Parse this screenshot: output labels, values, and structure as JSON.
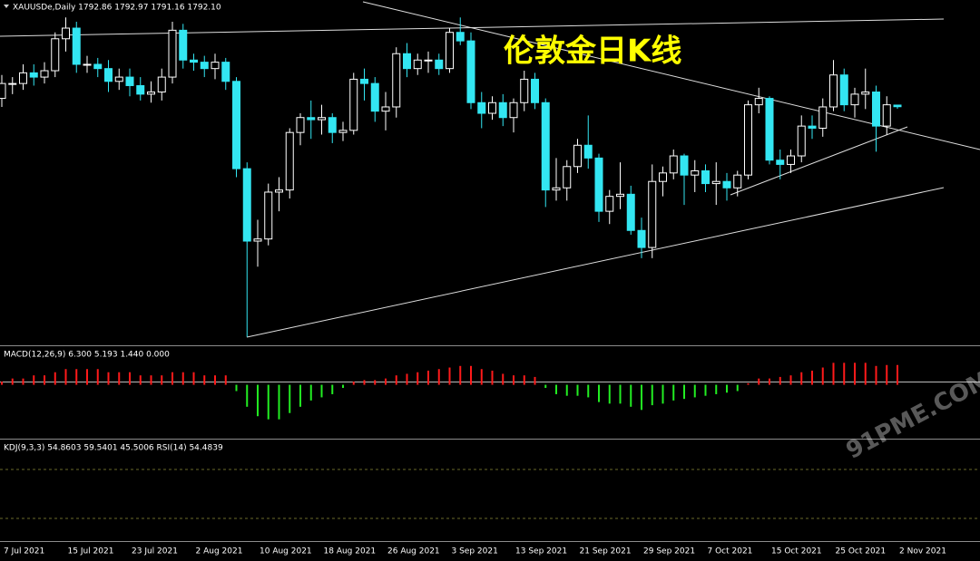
{
  "chart_data": {
    "type": "candlestick",
    "title": "伦敦金日K线",
    "header": "XAUUSDe,Daily 1792.86 1792.97 1791.16 1792.10",
    "watermark": "91PME.COM",
    "x": [
      "7 Jul 2021",
      "8 Jul 2021",
      "9 Jul 2021",
      "12 Jul 2021",
      "13 Jul 2021",
      "14 Jul 2021",
      "15 Jul 2021",
      "16 Jul 2021",
      "19 Jul 2021",
      "20 Jul 2021",
      "21 Jul 2021",
      "22 Jul 2021",
      "23 Jul 2021",
      "26 Jul 2021",
      "27 Jul 2021",
      "28 Jul 2021",
      "29 Jul 2021",
      "30 Jul 2021",
      "2 Aug 2021",
      "3 Aug 2021",
      "4 Aug 2021",
      "5 Aug 2021",
      "6 Aug 2021",
      "9 Aug 2021",
      "10 Aug 2021",
      "11 Aug 2021",
      "12 Aug 2021",
      "13 Aug 2021",
      "16 Aug 2021",
      "17 Aug 2021",
      "18 Aug 2021",
      "19 Aug 2021",
      "20 Aug 2021",
      "23 Aug 2021",
      "24 Aug 2021",
      "25 Aug 2021",
      "26 Aug 2021",
      "27 Aug 2021",
      "30 Aug 2021",
      "31 Aug 2021",
      "1 Sep 2021",
      "2 Sep 2021",
      "3 Sep 2021",
      "6 Sep 2021",
      "7 Sep 2021",
      "8 Sep 2021",
      "9 Sep 2021",
      "10 Sep 2021",
      "13 Sep 2021",
      "14 Sep 2021",
      "15 Sep 2021",
      "16 Sep 2021",
      "17 Sep 2021",
      "20 Sep 2021",
      "21 Sep 2021",
      "22 Sep 2021",
      "23 Sep 2021",
      "24 Sep 2021",
      "27 Sep 2021",
      "28 Sep 2021",
      "29 Sep 2021",
      "30 Sep 2021",
      "1 Oct 2021",
      "4 Oct 2021",
      "5 Oct 2021",
      "6 Oct 2021",
      "7 Oct 2021",
      "8 Oct 2021",
      "11 Oct 2021",
      "12 Oct 2021",
      "13 Oct 2021",
      "14 Oct 2021",
      "15 Oct 2021",
      "18 Oct 2021",
      "19 Oct 2021",
      "20 Oct 2021",
      "21 Oct 2021",
      "22 Oct 2021",
      "25 Oct 2021",
      "26 Oct 2021",
      "27 Oct 2021",
      "28 Oct 2021",
      "29 Oct 2021",
      "1 Nov 2021",
      "2 Nov 2021"
    ],
    "xticks": [
      "7 Jul 2021",
      "15 Jul 2021",
      "23 Jul 2021",
      "2 Aug 2021",
      "10 Aug 2021",
      "18 Aug 2021",
      "26 Aug 2021",
      "3 Sep 2021",
      "13 Sep 2021",
      "21 Sep 2021",
      "29 Sep 2021",
      "7 Oct 2021",
      "15 Oct 2021",
      "25 Oct 2021",
      "2 Nov 2021"
    ],
    "open": [
      1796,
      1803,
      1803,
      1808,
      1806,
      1809,
      1824,
      1829,
      1812,
      1812,
      1810,
      1804,
      1806,
      1802,
      1798,
      1799,
      1806,
      1828,
      1814,
      1813,
      1810,
      1813,
      1804,
      1763,
      1729,
      1730,
      1752,
      1753,
      1780,
      1787,
      1786,
      1787,
      1780,
      1781,
      1805,
      1803,
      1790,
      1792,
      1817,
      1810,
      1814,
      1814,
      1810,
      1827,
      1823,
      1794,
      1789,
      1794,
      1787,
      1794,
      1805,
      1794,
      1753,
      1754,
      1764,
      1774,
      1768,
      1743,
      1750,
      1751,
      1734,
      1726,
      1757,
      1761,
      1769,
      1760,
      1762,
      1756,
      1757,
      1754,
      1760,
      1793,
      1796,
      1767,
      1765,
      1769,
      1783,
      1782,
      1792,
      1807,
      1793,
      1798,
      1799,
      1783,
      1792.86
    ],
    "high": [
      1807,
      1806,
      1812,
      1812,
      1813,
      1827,
      1834,
      1832,
      1816,
      1815,
      1814,
      1810,
      1810,
      1806,
      1804,
      1810,
      1832,
      1831,
      1817,
      1816,
      1817,
      1815,
      1806,
      1766,
      1739,
      1756,
      1759,
      1782,
      1789,
      1795,
      1793,
      1789,
      1785,
      1808,
      1810,
      1806,
      1799,
      1820,
      1822,
      1817,
      1818,
      1817,
      1829,
      1834,
      1827,
      1799,
      1797,
      1798,
      1796,
      1809,
      1808,
      1796,
      1768,
      1767,
      1777,
      1788,
      1770,
      1753,
      1766,
      1755,
      1740,
      1765,
      1764,
      1772,
      1770,
      1767,
      1765,
      1766,
      1761,
      1762,
      1795,
      1801,
      1797,
      1772,
      1772,
      1788,
      1788,
      1796,
      1814,
      1810,
      1801,
      1810,
      1802,
      1797,
      1792.97
    ],
    "low": [
      1792,
      1798,
      1800,
      1802,
      1803,
      1806,
      1818,
      1808,
      1808,
      1806,
      1799,
      1800,
      1797,
      1795,
      1794,
      1795,
      1803,
      1810,
      1809,
      1806,
      1805,
      1800,
      1759,
      1684,
      1717,
      1727,
      1743,
      1749,
      1774,
      1777,
      1779,
      1775,
      1776,
      1779,
      1795,
      1785,
      1781,
      1787,
      1806,
      1807,
      1808,
      1807,
      1808,
      1821,
      1791,
      1782,
      1786,
      1783,
      1780,
      1790,
      1791,
      1745,
      1748,
      1748,
      1761,
      1763,
      1738,
      1737,
      1744,
      1732,
      1721,
      1721,
      1750,
      1758,
      1746,
      1752,
      1752,
      1746,
      1748,
      1750,
      1758,
      1789,
      1765,
      1758,
      1761,
      1766,
      1777,
      1778,
      1790,
      1790,
      1787,
      1791,
      1771,
      1779,
      1791.16
    ],
    "close": [
      1803,
      1803,
      1808,
      1806,
      1809,
      1824,
      1829,
      1812,
      1812,
      1810,
      1804,
      1806,
      1802,
      1798,
      1799,
      1806,
      1828,
      1814,
      1813,
      1810,
      1813,
      1804,
      1763,
      1729,
      1730,
      1752,
      1753,
      1780,
      1787,
      1786,
      1787,
      1780,
      1781,
      1805,
      1803,
      1790,
      1792,
      1817,
      1810,
      1814,
      1814,
      1810,
      1827,
      1823,
      1794,
      1789,
      1794,
      1787,
      1794,
      1805,
      1794,
      1753,
      1754,
      1764,
      1774,
      1768,
      1743,
      1750,
      1751,
      1734,
      1726,
      1757,
      1761,
      1769,
      1760,
      1762,
      1756,
      1757,
      1754,
      1760,
      1793,
      1796,
      1767,
      1765,
      1769,
      1783,
      1782,
      1792,
      1807,
      1793,
      1798,
      1799,
      1783,
      1793,
      1792.1
    ],
    "ylim": [
      1680.5,
      1842.2
    ],
    "up_color": "#000000",
    "down_color": "#33e6f2",
    "macd": {
      "header": "MACD(12,26,9) 6.300 5.193 1.440 0.000",
      "values": [
        1,
        2,
        2,
        3,
        3,
        4,
        5,
        5,
        5,
        5,
        4,
        4,
        4,
        3,
        3,
        3,
        4,
        4,
        4,
        3,
        3,
        3,
        -2,
        -7,
        -10,
        -11,
        -11,
        -9,
        -7,
        -5,
        -4,
        -3,
        -1,
        1,
        1.5,
        1.5,
        2,
        3,
        3.5,
        4,
        4.5,
        5,
        5.5,
        6,
        6,
        5,
        4.5,
        3.5,
        3,
        3,
        2.5,
        -1,
        -3,
        -3.5,
        -3.5,
        -4,
        -5.5,
        -6,
        -6,
        -7,
        -8,
        -6.5,
        -6,
        -5,
        -4.5,
        -4,
        -3.5,
        -3,
        -2.5,
        -2,
        0.5,
        2,
        2,
        2.5,
        3,
        4,
        4.5,
        5.5,
        7,
        7,
        7,
        7,
        6,
        6.3,
        6.3
      ],
      "ylim": [
        -16,
        12
      ],
      "up_color": "#ff1a1a",
      "down_color": "#22ee22"
    },
    "kdj": {
      "header": "KDJ(9,3,3) 54.8603 59.5401 45.5006 RSI(14) 54.4839"
    }
  }
}
